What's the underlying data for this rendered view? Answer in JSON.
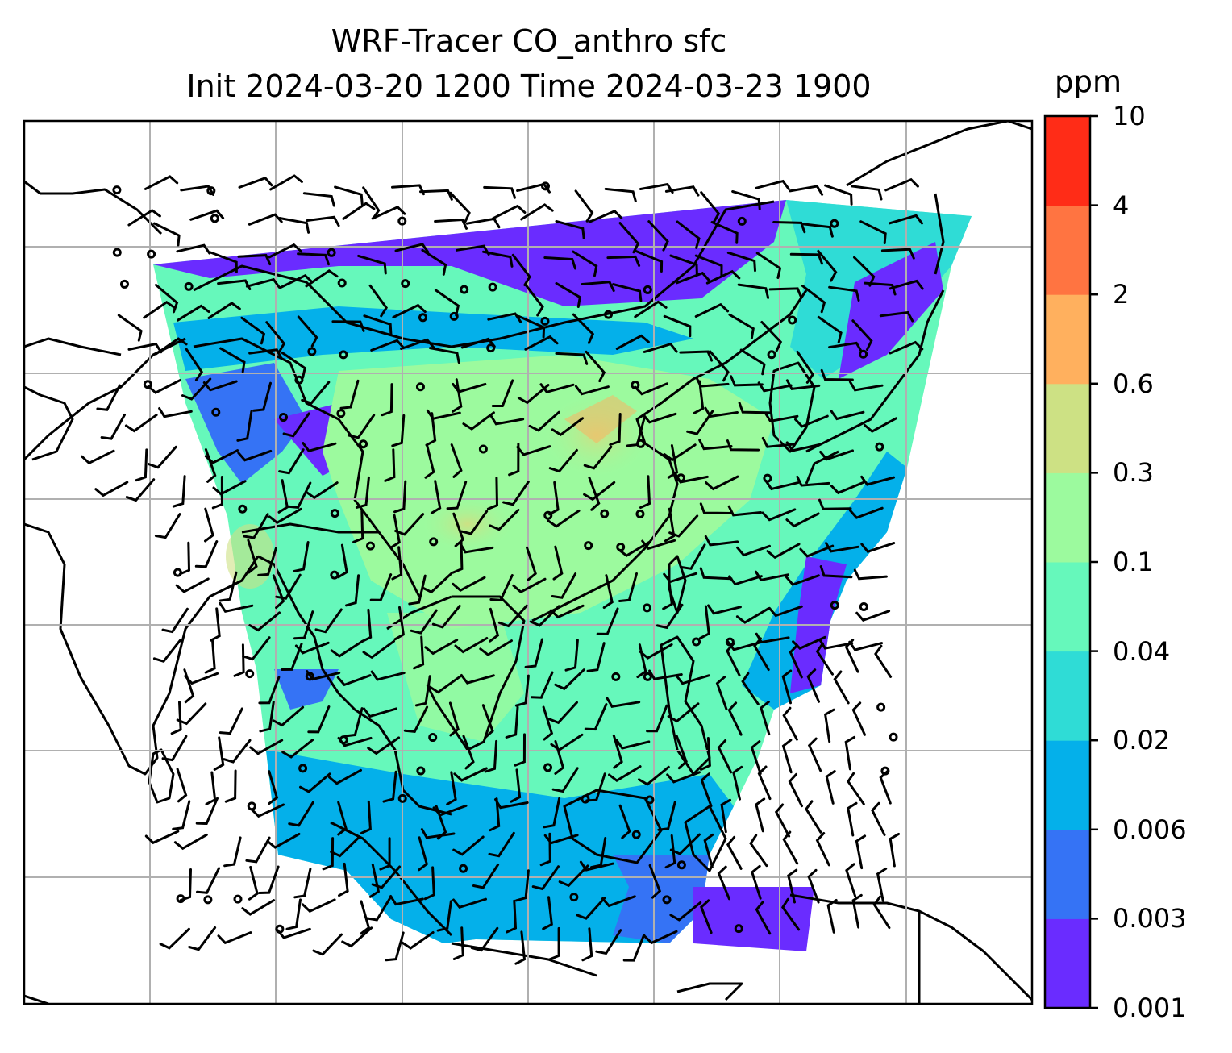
{
  "title": {
    "line1": "WRF-Tracer CO_anthro sfc",
    "line2": "Init 2024-03-20 1200 Time 2024-03-23 1900"
  },
  "colorbar": {
    "unit": "ppm",
    "bins": [
      {
        "from": "0.001",
        "to": "0.003",
        "color": "#6a2cff"
      },
      {
        "from": "0.003",
        "to": "0.006",
        "color": "#3573f5"
      },
      {
        "from": "0.006",
        "to": "0.02",
        "color": "#04b0ea"
      },
      {
        "from": "0.02",
        "to": "0.04",
        "color": "#2fdcd6"
      },
      {
        "from": "0.04",
        "to": "0.1",
        "color": "#66f8bb"
      },
      {
        "from": "0.1",
        "to": "0.3",
        "color": "#9cfa9e"
      },
      {
        "from": "0.3",
        "to": "0.6",
        "color": "#cde184"
      },
      {
        "from": "0.6",
        "to": "2",
        "color": "#ffb05e"
      },
      {
        "from": "2",
        "to": "4",
        "color": "#ff7441"
      },
      {
        "from": "4",
        "to": "10",
        "color": "#ff2c17"
      }
    ],
    "tick_labels": [
      "0.001",
      "0.003",
      "0.006",
      "0.02",
      "0.04",
      "0.1",
      "0.3",
      "0.6",
      "2",
      "4",
      "10"
    ]
  }
}
